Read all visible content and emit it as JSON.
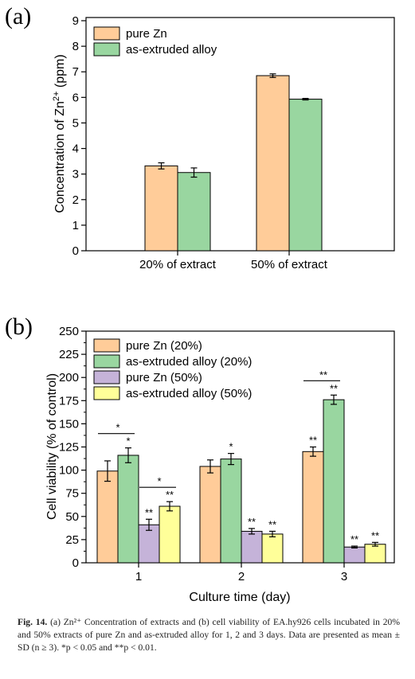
{
  "chart_data": [
    {
      "type": "bar",
      "panel_label": "(a)",
      "categories": [
        "20% of extract",
        "50% of extract"
      ],
      "series": [
        {
          "name": "pure Zn",
          "values": [
            3.32,
            6.85
          ],
          "errors": [
            0.12,
            0.07
          ]
        },
        {
          "name": "as-extruded alloy",
          "values": [
            3.06,
            5.93
          ],
          "errors": [
            0.18,
            0.03
          ]
        }
      ],
      "xlabel": "",
      "ylabel": "Concentration of Zn²⁺ (ppm)",
      "ylim": [
        0,
        9
      ],
      "yticks": [
        0,
        1,
        2,
        3,
        4,
        5,
        6,
        7,
        8,
        9
      ],
      "legend": "top-left",
      "grid": false,
      "colors": [
        "#FFCC99",
        "#99D6A0"
      ]
    },
    {
      "type": "bar",
      "panel_label": "(b)",
      "categories": [
        "1",
        "2",
        "3"
      ],
      "series": [
        {
          "name": "pure Zn (20%)",
          "values": [
            99,
            104,
            120
          ],
          "errors": [
            11,
            7,
            5
          ],
          "marks": [
            "",
            "",
            "**"
          ]
        },
        {
          "name": "as-extruded alloy (20%)",
          "values": [
            116,
            112,
            176
          ],
          "errors": [
            8,
            6,
            5
          ],
          "marks": [
            "*",
            "*",
            "**"
          ]
        },
        {
          "name": "pure Zn (50%)",
          "values": [
            41,
            34,
            17
          ],
          "errors": [
            6,
            3,
            1
          ],
          "marks": [
            "**",
            "**",
            "**"
          ]
        },
        {
          "name": "as-extruded alloy (50%)",
          "values": [
            61,
            31,
            20
          ],
          "errors": [
            5,
            3,
            2
          ],
          "marks": [
            "**",
            "**",
            "**"
          ]
        }
      ],
      "comparisons": [
        {
          "category": "1",
          "between": [
            "pure Zn (20%)",
            "as-extruded alloy (20%)"
          ],
          "mark": "*"
        },
        {
          "category": "1",
          "between": [
            "pure Zn (50%)",
            "as-extruded alloy (50%)"
          ],
          "mark": "*"
        },
        {
          "category": "3",
          "between": [
            "pure Zn (20%)",
            "as-extruded alloy (20%)"
          ],
          "mark": "**"
        }
      ],
      "xlabel": "Culture time (day)",
      "ylabel": "Cell viability (% of control)",
      "ylim": [
        0,
        250
      ],
      "yticks": [
        0,
        25,
        50,
        75,
        100,
        125,
        150,
        175,
        200,
        225,
        250
      ],
      "legend": "top-left",
      "grid": false,
      "colors": [
        "#FFCC99",
        "#99D6A0",
        "#C5B3D9",
        "#FFFF99"
      ]
    }
  ],
  "caption": {
    "label": "Fig. 14.",
    "text": "(a) Zn²⁺ Concentration of extracts and (b) cell viability of EA.hy926 cells incubated in 20% and 50% extracts of pure Zn and as-extruded alloy for 1, 2 and 3 days. Data are presented as mean ± SD (n ≥ 3). *p < 0.05 and **p < 0.01."
  }
}
